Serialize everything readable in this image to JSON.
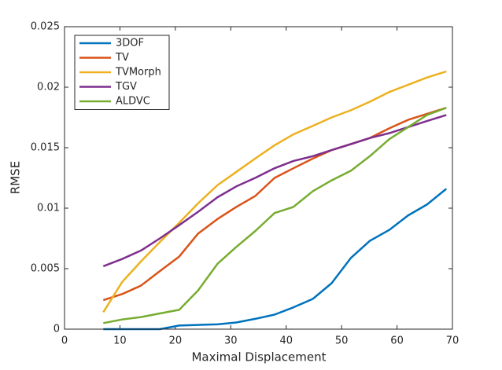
{
  "chart_data": {
    "type": "line",
    "xlabel": "Maximal Displacement",
    "ylabel": "RMSE",
    "x": [
      7,
      10.4,
      13.8,
      17.2,
      20.7,
      24.1,
      27.6,
      31,
      34.4,
      37.9,
      41.3,
      44.8,
      48.2,
      51.7,
      55.1,
      58.6,
      62,
      65.4,
      68.9
    ],
    "series": [
      {
        "name": "3DOF",
        "color": "#0072bd",
        "values": [
          0,
          0,
          0,
          0,
          0.0003,
          0.00035,
          0.0004,
          0.00055,
          0.00085,
          0.0012,
          0.0018,
          0.0025,
          0.0038,
          0.0059,
          0.0073,
          0.0082,
          0.0094,
          0.0103,
          0.0116
        ]
      },
      {
        "name": "TV",
        "color": "#d95319",
        "values": [
          0.0024,
          0.0029,
          0.0036,
          0.0048,
          0.006,
          0.0079,
          0.0091,
          0.0101,
          0.011,
          0.0125,
          0.0133,
          0.0141,
          0.0148,
          0.0153,
          0.0158,
          0.0166,
          0.0173,
          0.0178,
          0.0183
        ]
      },
      {
        "name": "TVMorph",
        "color": "#edb120",
        "values": [
          0.0014,
          0.0039,
          0.0056,
          0.0072,
          0.0088,
          0.0104,
          0.0119,
          0.013,
          0.0141,
          0.0152,
          0.0161,
          0.0168,
          0.0175,
          0.0181,
          0.0188,
          0.0196,
          0.0202,
          0.0208,
          0.0213
        ]
      },
      {
        "name": "TGV",
        "color": "#7e2f8e",
        "values": [
          0.0052,
          0.0058,
          0.0065,
          0.0075,
          0.0086,
          0.0097,
          0.0109,
          0.0118,
          0.0125,
          0.0133,
          0.0139,
          0.0143,
          0.0148,
          0.0153,
          0.0158,
          0.0162,
          0.0167,
          0.0172,
          0.0177
        ]
      },
      {
        "name": "ALDVC",
        "color": "#77ac30",
        "values": [
          0.0005,
          0.0008,
          0.001,
          0.0013,
          0.0016,
          0.0032,
          0.0054,
          0.0068,
          0.0081,
          0.0096,
          0.0101,
          0.0114,
          0.0123,
          0.0131,
          0.0143,
          0.0157,
          0.0167,
          0.0177,
          0.0183
        ]
      }
    ],
    "xlim": [
      0,
      70
    ],
    "xticks": [
      0,
      10,
      20,
      30,
      40,
      50,
      60,
      70
    ],
    "ylim": [
      0,
      0.025
    ],
    "yticks": [
      0,
      0.005,
      0.01,
      0.015,
      0.02,
      0.025
    ],
    "legend": "upper-left",
    "grid": false
  }
}
